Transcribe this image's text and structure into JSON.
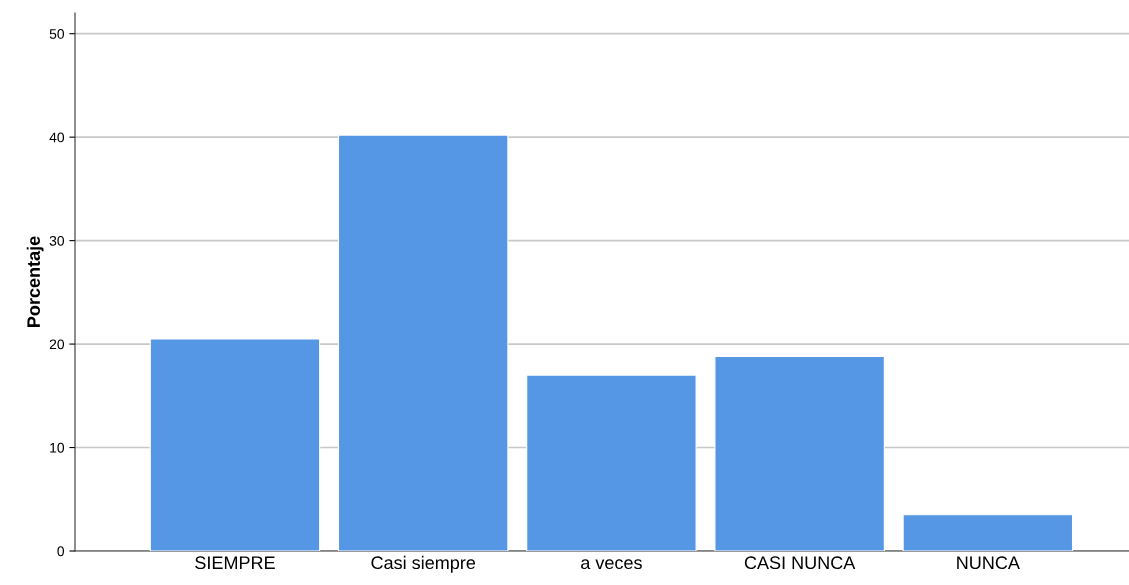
{
  "chart_data": {
    "type": "bar",
    "ylabel": "Porcentaje",
    "categories": [
      "SIEMPRE",
      "Casi siempre",
      "a veces",
      "CASI NUNCA",
      "NUNCA"
    ],
    "values": [
      20.5,
      40.2,
      17.0,
      18.8,
      3.5
    ],
    "color": "#5596e5",
    "ylim": [
      0,
      52
    ],
    "yticks": [
      0,
      10,
      20,
      30,
      40,
      50
    ],
    "grid": "y",
    "legend": false
  }
}
